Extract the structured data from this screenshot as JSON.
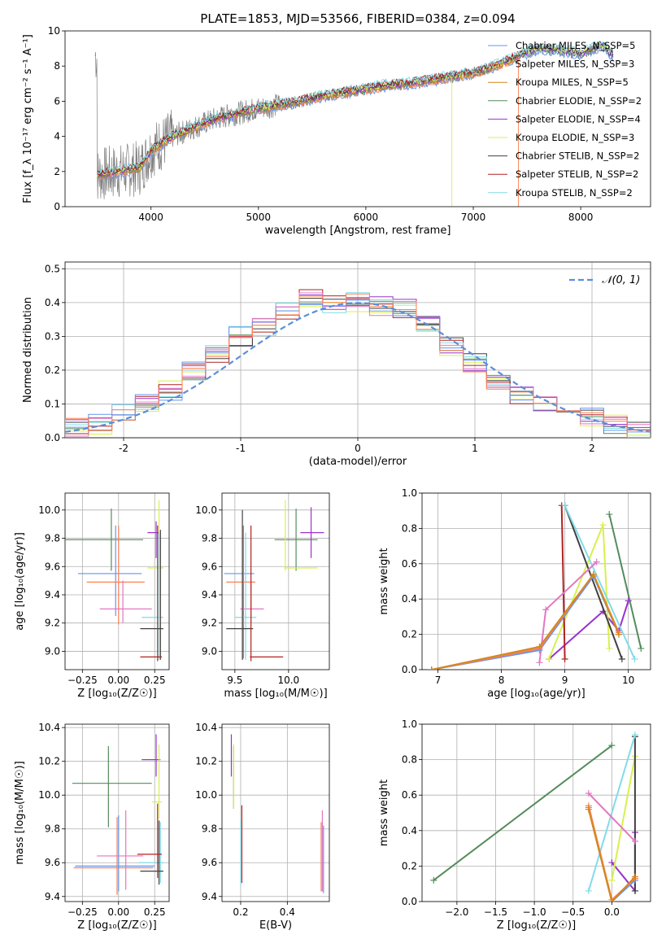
{
  "chart_data": [
    {
      "id": "spectrum",
      "type": "line",
      "title": "PLATE=1853, MJD=53566, FIBERID=0384, z=0.094",
      "xlabel": "wavelength [Angstrom, rest frame]",
      "ylabel": "Flux [f_λ 10⁻¹⁷ erg cm⁻² s⁻¹ A⁻¹]",
      "xlim": [
        3200,
        8650
      ],
      "ylim": [
        0,
        10
      ],
      "xticks": [
        4000,
        5000,
        6000,
        7000,
        8000
      ],
      "yticks": [
        0,
        2,
        4,
        6,
        8,
        10
      ],
      "legend_position": "right",
      "data_color": "#808080",
      "legend": [
        {
          "label": "Chabrier MILES, N_SSP=5",
          "color": "#6495ed"
        },
        {
          "label": "Salpeter MILES, N_SSP=3",
          "color": "#ff7f50"
        },
        {
          "label": "Kroupa MILES, N_SSP=5",
          "color": "#d2881e"
        },
        {
          "label": "Chabrier ELODIE, N_SSP=2",
          "color": "#548c5c"
        },
        {
          "label": "Salpeter ELODIE, N_SSP=4",
          "color": "#9932cc"
        },
        {
          "label": "Kroupa ELODIE, N_SSP=3",
          "color": "#d8f04c"
        },
        {
          "label": "Chabrier STELIB, N_SSP=2",
          "color": "#404040"
        },
        {
          "label": "Salpeter STELIB, N_SSP=2",
          "color": "#b22222"
        },
        {
          "label": "Kroupa STELIB, N_SSP=2",
          "color": "#80dce8"
        }
      ],
      "x": [
        3500,
        3700,
        3900,
        4000,
        4200,
        4400,
        4600,
        4800,
        5000,
        5200,
        5400,
        5600,
        5800,
        6000,
        6200,
        6400,
        6600,
        6800,
        7000,
        7200,
        7400,
        7600,
        7800,
        8000,
        8200,
        8300
      ],
      "model_flux": [
        1.8,
        2.0,
        2.2,
        3.2,
        4.0,
        4.5,
        5.0,
        5.3,
        5.6,
        5.8,
        6.0,
        6.3,
        6.5,
        6.7,
        6.9,
        7.0,
        7.2,
        7.4,
        7.6,
        8.0,
        8.5,
        9.0,
        8.9,
        8.7,
        9.2,
        8.6
      ]
    },
    {
      "id": "residual-histogram",
      "type": "step",
      "xlabel": "(data-model)/error",
      "ylabel": "Normed distribution",
      "xlim": [
        -2.5,
        2.5
      ],
      "ylim": [
        0,
        0.52
      ],
      "xticks": [
        -2,
        -1,
        0,
        1,
        2
      ],
      "yticks": [
        0.0,
        0.1,
        0.2,
        0.3,
        0.4,
        0.5
      ],
      "grid": true,
      "legend_position": "top-right",
      "gaussian_label": "𝒩(0, 1)",
      "gaussian_color": "#5b8fd6",
      "hist_colors": [
        "#548c5c",
        "#9932cc",
        "#d8f04c",
        "#404040",
        "#b22222",
        "#80dce8",
        "#e377c2",
        "#6495ed",
        "#ff7f50"
      ],
      "bin_centers": [
        -2.4,
        -2.2,
        -2.0,
        -1.8,
        -1.6,
        -1.4,
        -1.2,
        -1.0,
        -0.8,
        -0.6,
        -0.4,
        -0.2,
        0.0,
        0.2,
        0.4,
        0.6,
        0.8,
        1.0,
        1.2,
        1.4,
        1.6,
        1.8,
        2.0,
        2.2,
        2.4
      ],
      "hist_values": [
        0.03,
        0.04,
        0.07,
        0.1,
        0.14,
        0.2,
        0.25,
        0.3,
        0.33,
        0.37,
        0.41,
        0.4,
        0.4,
        0.39,
        0.38,
        0.33,
        0.27,
        0.22,
        0.17,
        0.13,
        0.1,
        0.08,
        0.06,
        0.04,
        0.02
      ]
    },
    {
      "id": "age-vs-metallicity",
      "type": "scatter",
      "xlabel": "Z [log₁₀(Z/Z☉)]",
      "ylabel": "age  [log₁₀(age/yr)]",
      "xlim": [
        -0.37,
        0.35
      ],
      "ylim": [
        8.87,
        10.12
      ],
      "xticks": [
        -0.25,
        0.0,
        0.25
      ],
      "xticklabels": [
        "−0.25",
        "0.00",
        "0.25"
      ],
      "yticks": [
        9.0,
        9.2,
        9.4,
        9.6,
        9.8,
        10.0
      ],
      "grid": true,
      "points": [
        {
          "x": -0.05,
          "y": 9.79,
          "xerr": [
            0.34,
            0.22
          ],
          "yerr": [
            0.22,
            0.22
          ],
          "color": "#548c5c"
        },
        {
          "x": 0.26,
          "y": 9.84,
          "xerr": [
            0.06,
            0.02
          ],
          "yerr": [
            0.18,
            0.08
          ],
          "color": "#9932cc"
        },
        {
          "x": 0.28,
          "y": 9.59,
          "xerr": [
            0.08,
            0.03
          ],
          "yerr": [
            0.63,
            0.48
          ],
          "color": "#d8f04c"
        },
        {
          "x": -0.02,
          "y": 9.55,
          "xerr": [
            0.26,
            0.18
          ],
          "yerr": [
            0.3,
            0.34
          ],
          "color": "#6495ed"
        },
        {
          "x": 0.0,
          "y": 9.49,
          "xerr": [
            0.22,
            0.18
          ],
          "yerr": [
            0.3,
            0.4
          ],
          "color": "#ff7f50"
        },
        {
          "x": 0.03,
          "y": 9.3,
          "xerr": [
            0.16,
            0.2
          ],
          "yerr": [
            0.1,
            0.2
          ],
          "color": "#e377c2"
        },
        {
          "x": 0.28,
          "y": 9.24,
          "xerr": [
            0.12,
            0.03
          ],
          "yerr": [
            0.3,
            0.6
          ],
          "color": "#80dce8"
        },
        {
          "x": 0.29,
          "y": 9.16,
          "xerr": [
            0.14,
            0.02
          ],
          "yerr": [
            0.22,
            0.7
          ],
          "color": "#404040"
        },
        {
          "x": 0.27,
          "y": 8.96,
          "xerr": [
            0.12,
            0.03
          ],
          "yerr": [
            0.03,
            0.93
          ],
          "color": "#b22222"
        }
      ]
    },
    {
      "id": "age-vs-mass",
      "type": "scatter",
      "xlabel": "mass [log₁₀(M/M☉)]",
      "ylabel": "",
      "xlim": [
        9.38,
        10.38
      ],
      "ylim": [
        8.87,
        10.12
      ],
      "xticks": [
        9.5,
        10.0
      ],
      "xticklabels": [
        "9.5",
        "10.0"
      ],
      "yticks": [
        9.0,
        9.2,
        9.4,
        9.6,
        9.8,
        10.0
      ],
      "grid": true,
      "points": [
        {
          "x": 10.07,
          "y": 9.79,
          "xerr": [
            0.2,
            0.2
          ],
          "yerr": [
            0.22,
            0.22
          ],
          "color": "#548c5c"
        },
        {
          "x": 10.21,
          "y": 9.84,
          "xerr": [
            0.1,
            0.12
          ],
          "yerr": [
            0.18,
            0.18
          ],
          "color": "#9932cc"
        },
        {
          "x": 9.97,
          "y": 9.59,
          "xerr": [
            0.01,
            0.3
          ],
          "yerr": [
            0.02,
            0.48
          ],
          "color": "#d8f04c"
        },
        {
          "x": 9.58,
          "y": 9.55,
          "xerr": [
            0.18,
            0.1
          ],
          "yerr": [
            0.6,
            0.34
          ],
          "color": "#6495ed"
        },
        {
          "x": 9.57,
          "y": 9.49,
          "xerr": [
            0.15,
            0.12
          ],
          "yerr": [
            0.55,
            0.4
          ],
          "color": "#ff7f50"
        },
        {
          "x": 9.65,
          "y": 9.3,
          "xerr": [
            0.1,
            0.12
          ],
          "yerr": [
            0.1,
            0.2
          ],
          "color": "#e377c2"
        },
        {
          "x": 9.6,
          "y": 9.24,
          "xerr": [
            0.1,
            0.1
          ],
          "yerr": [
            0.3,
            0.6
          ],
          "color": "#80dce8"
        },
        {
          "x": 9.57,
          "y": 9.16,
          "xerr": [
            0.15,
            0.1
          ],
          "yerr": [
            0.22,
            0.84
          ],
          "color": "#404040"
        },
        {
          "x": 9.65,
          "y": 8.96,
          "xerr": [
            0.01,
            0.3
          ],
          "yerr": [
            0.03,
            0.93
          ],
          "color": "#b22222"
        }
      ]
    },
    {
      "id": "massweight-vs-age",
      "type": "line",
      "xlabel": "age  [log₁₀(age/yr)]",
      "ylabel": "mass weight",
      "xlim": [
        6.75,
        10.35
      ],
      "ylim": [
        0,
        1
      ],
      "xticks": [
        7,
        8,
        9,
        10
      ],
      "yticks": [
        0.0,
        0.2,
        0.4,
        0.6,
        0.8,
        1.0
      ],
      "grid": true,
      "series": [
        {
          "color": "#548c5c",
          "x": [
            9.7,
            10.2
          ],
          "y": [
            0.88,
            0.12
          ]
        },
        {
          "color": "#9932cc",
          "x": [
            8.75,
            9.6,
            9.85,
            10.0
          ],
          "y": [
            0.06,
            0.33,
            0.22,
            0.39
          ]
        },
        {
          "color": "#d8f04c",
          "x": [
            8.75,
            9.6,
            9.7
          ],
          "y": [
            0.06,
            0.82,
            0.12
          ]
        },
        {
          "color": "#404040",
          "x": [
            9.0,
            9.9
          ],
          "y": [
            0.93,
            0.06
          ]
        },
        {
          "color": "#b22222",
          "x": [
            8.95,
            9.0
          ],
          "y": [
            0.93,
            0.06
          ]
        },
        {
          "color": "#80dce8",
          "x": [
            9.0,
            10.1
          ],
          "y": [
            0.93,
            0.06
          ]
        },
        {
          "color": "#e377c2",
          "x": [
            8.6,
            8.7,
            9.5
          ],
          "y": [
            0.04,
            0.34,
            0.61
          ]
        },
        {
          "color": "#6495ed",
          "x": [
            6.9,
            8.6,
            9.45,
            9.85
          ],
          "y": [
            0.0,
            0.11,
            0.53,
            0.2
          ]
        },
        {
          "color": "#ff7f50",
          "x": [
            6.9,
            8.6,
            9.45,
            9.85
          ],
          "y": [
            0.0,
            0.12,
            0.54,
            0.21
          ]
        },
        {
          "color": "#d2881e",
          "x": [
            6.9,
            8.6,
            9.45,
            9.85
          ],
          "y": [
            0.0,
            0.13,
            0.54,
            0.2
          ]
        }
      ]
    },
    {
      "id": "mass-vs-metallicity",
      "type": "scatter",
      "xlabel": "Z [log₁₀(Z/Z☉)]",
      "ylabel": "mass [log₁₀(M/M☉)]",
      "xlim": [
        -0.37,
        0.35
      ],
      "ylim": [
        9.37,
        10.42
      ],
      "xticks": [
        -0.25,
        0.0,
        0.25
      ],
      "xticklabels": [
        "−0.25",
        "0.00",
        "0.25"
      ],
      "yticks": [
        9.4,
        9.6,
        9.8,
        10.0,
        10.2,
        10.4
      ],
      "grid": true,
      "points": [
        {
          "x": -0.07,
          "y": 10.07,
          "xerr": [
            0.25,
            0.3
          ],
          "yerr": [
            0.26,
            0.22
          ],
          "color": "#548c5c"
        },
        {
          "x": 0.26,
          "y": 10.21,
          "xerr": [
            0.1,
            0.03
          ],
          "yerr": [
            0.1,
            0.15
          ],
          "color": "#9932cc"
        },
        {
          "x": 0.28,
          "y": 9.96,
          "xerr": [
            0.05,
            0.02
          ],
          "yerr": [
            0.1,
            0.34
          ],
          "color": "#d8f04c"
        },
        {
          "x": 0.0,
          "y": 9.58,
          "xerr": [
            0.3,
            0.25
          ],
          "yerr": [
            0.15,
            0.3
          ],
          "color": "#6495ed"
        },
        {
          "x": -0.01,
          "y": 9.57,
          "xerr": [
            0.3,
            0.25
          ],
          "yerr": [
            0.16,
            0.3
          ],
          "color": "#ff7f50"
        },
        {
          "x": 0.05,
          "y": 9.64,
          "xerr": [
            0.2,
            0.12
          ],
          "yerr": [
            0.2,
            0.27
          ],
          "color": "#e377c2"
        },
        {
          "x": 0.29,
          "y": 9.6,
          "xerr": [
            0.15,
            0.02
          ],
          "yerr": [
            0.12,
            0.24
          ],
          "color": "#80dce8"
        },
        {
          "x": 0.28,
          "y": 9.55,
          "xerr": [
            0.13,
            0.03
          ],
          "yerr": [
            0.08,
            0.3
          ],
          "color": "#404040"
        },
        {
          "x": 0.27,
          "y": 9.65,
          "xerr": [
            0.14,
            0.03
          ],
          "yerr": [
            0.14,
            0.3
          ],
          "color": "#b22222"
        }
      ]
    },
    {
      "id": "mass-vs-ebv",
      "type": "scatter",
      "xlabel": "E(B-V)",
      "ylabel": "",
      "xlim": [
        0.12,
        0.58
      ],
      "ylim": [
        9.37,
        10.42
      ],
      "xticks": [
        0.2,
        0.4
      ],
      "xticklabels": [
        "0.2",
        "0.4"
      ],
      "yticks": [
        9.4,
        9.6,
        9.8,
        10.0,
        10.2,
        10.4
      ],
      "grid": true,
      "points": [
        {
          "x": 0.17,
          "y": 10.07,
          "xerr": [
            0,
            0
          ],
          "yerr": [
            0.15,
            0.22
          ],
          "color": "#548c5c"
        },
        {
          "x": 0.16,
          "y": 10.21,
          "xerr": [
            0,
            0
          ],
          "yerr": [
            0.1,
            0.15
          ],
          "color": "#9932cc"
        },
        {
          "x": 0.17,
          "y": 10.1,
          "xerr": [
            0,
            0
          ],
          "yerr": [
            0.18,
            0.2
          ],
          "color": "#d8f04c"
        },
        {
          "x": 0.205,
          "y": 9.7,
          "xerr": [
            0,
            0
          ],
          "yerr": [
            0.22,
            0.24
          ],
          "color": "#b22222"
        },
        {
          "x": 0.2,
          "y": 9.65,
          "xerr": [
            0,
            0
          ],
          "yerr": [
            0.18,
            0.2
          ],
          "color": "#80dce8"
        },
        {
          "x": 0.545,
          "y": 9.6,
          "xerr": [
            0,
            0
          ],
          "yerr": [
            0.17,
            0.24
          ],
          "color": "#ff7f50"
        },
        {
          "x": 0.55,
          "y": 9.65,
          "xerr": [
            0,
            0
          ],
          "yerr": [
            0.22,
            0.26
          ],
          "color": "#e377c2"
        },
        {
          "x": 0.555,
          "y": 9.6,
          "xerr": [
            0,
            0
          ],
          "yerr": [
            0.18,
            0.22
          ],
          "color": "#6495ed"
        }
      ]
    },
    {
      "id": "massweight-vs-metallicity",
      "type": "line",
      "xlabel": "Z [log₁₀(Z/Z☉)]",
      "ylabel": "mass weight",
      "xlim": [
        -2.45,
        0.5
      ],
      "ylim": [
        0,
        1
      ],
      "xticks": [
        -2.0,
        -1.5,
        -1.0,
        -0.5,
        0.0
      ],
      "xticklabels": [
        "−2.0",
        "−1.5",
        "−1.0",
        "−0.5",
        "0.0"
      ],
      "yticks": [
        0.0,
        0.2,
        0.4,
        0.6,
        0.8,
        1.0
      ],
      "grid": true,
      "series": [
        {
          "color": "#548c5c",
          "x": [
            -2.3,
            0.0
          ],
          "y": [
            0.12,
            0.88
          ]
        },
        {
          "color": "#9932cc",
          "x": [
            0.0,
            0.3,
            0.3
          ],
          "y": [
            0.22,
            0.06,
            0.39
          ]
        },
        {
          "color": "#d8f04c",
          "x": [
            0.0,
            0.3
          ],
          "y": [
            0.12,
            0.82
          ]
        },
        {
          "color": "#404040",
          "x": [
            0.3,
            0.3
          ],
          "y": [
            0.93,
            0.06
          ]
        },
        {
          "color": "#80dce8",
          "x": [
            -0.3,
            0.3
          ],
          "y": [
            0.06,
            0.94
          ]
        },
        {
          "color": "#e377c2",
          "x": [
            -0.3,
            0.3
          ],
          "y": [
            0.61,
            0.34
          ]
        },
        {
          "color": "#6495ed",
          "x": [
            -0.3,
            0.0,
            0.3
          ],
          "y": [
            0.53,
            0.0,
            0.12
          ]
        },
        {
          "color": "#ff7f50",
          "x": [
            -0.3,
            0.0,
            0.3
          ],
          "y": [
            0.54,
            0.01,
            0.13
          ]
        },
        {
          "color": "#d2881e",
          "x": [
            -0.3,
            0.0,
            0.3
          ],
          "y": [
            0.52,
            0.0,
            0.14
          ]
        }
      ]
    }
  ]
}
